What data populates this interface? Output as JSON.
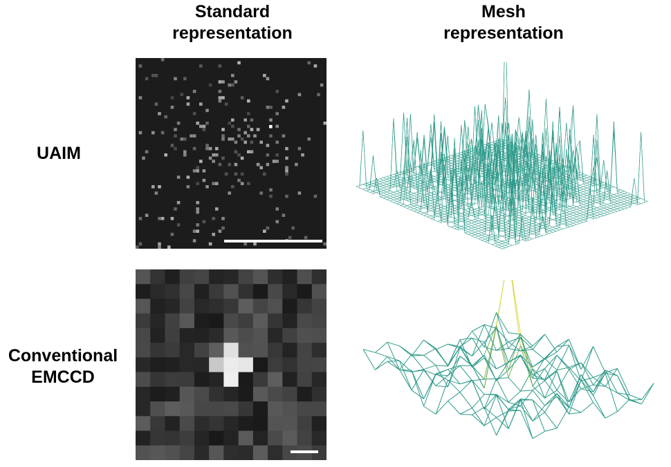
{
  "columns": {
    "standard_line1": "Standard",
    "standard_line2": "representation",
    "mesh_line1": "Mesh",
    "mesh_line2": "representation"
  },
  "rows": {
    "uaim_label": "UAIM",
    "emccd_line1": "Conventional",
    "emccd_line2": "EMCCD"
  },
  "colors": {
    "mesh_green": "#2e9a8a",
    "mesh_yellow": "#d8d84a",
    "scale_bar": "#ffffff"
  }
}
